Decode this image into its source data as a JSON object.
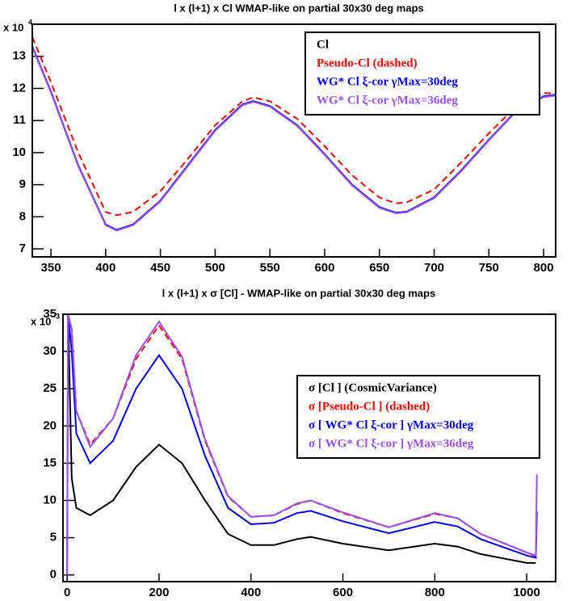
{
  "chart_data": [
    {
      "type": "line",
      "title": "l x (l+1) x Cl WMAP-like on partial 30x30 deg maps",
      "y_scale_label": {
        "text": "x 10",
        "exponent": "4"
      },
      "x": [
        333,
        350,
        375,
        400,
        410,
        425,
        450,
        475,
        500,
        525,
        535,
        550,
        575,
        600,
        625,
        650,
        665,
        675,
        700,
        725,
        750,
        775,
        800,
        811
      ],
      "series": [
        {
          "name": "Cl",
          "color": "#000000",
          "dash": false,
          "values": [
            13.3,
            11.9,
            9.6,
            7.75,
            7.58,
            7.75,
            8.5,
            9.6,
            10.7,
            11.5,
            11.6,
            11.45,
            10.85,
            9.95,
            9.0,
            8.3,
            8.12,
            8.15,
            8.6,
            9.45,
            10.4,
            11.3,
            11.75,
            11.8
          ]
        },
        {
          "name": "Pseudo-Cl  (dashed)",
          "color": "#ff0000",
          "dash": true,
          "values": [
            13.6,
            12.2,
            10.0,
            8.15,
            8.05,
            8.15,
            8.8,
            9.8,
            10.85,
            11.6,
            11.72,
            11.6,
            11.05,
            10.2,
            9.3,
            8.6,
            8.42,
            8.45,
            8.85,
            9.7,
            10.6,
            11.45,
            11.85,
            11.85
          ]
        },
        {
          "name": "WG* Cl ξ-cor  γMax=30deg",
          "color": "#0000ff",
          "dash": false,
          "values": [
            13.3,
            11.9,
            9.6,
            7.76,
            7.59,
            7.76,
            8.5,
            9.6,
            10.7,
            11.5,
            11.6,
            11.45,
            10.85,
            9.95,
            9.0,
            8.3,
            8.13,
            8.16,
            8.6,
            9.45,
            10.4,
            11.3,
            11.75,
            11.8
          ]
        },
        {
          "name": "WG* Cl ξ-cor  γMax=36deg",
          "color": "#9a4ef0",
          "dash": false,
          "values": [
            13.28,
            11.88,
            9.58,
            7.74,
            7.57,
            7.74,
            8.48,
            9.58,
            10.68,
            11.48,
            11.58,
            11.43,
            10.83,
            9.93,
            8.98,
            8.28,
            8.11,
            8.14,
            8.58,
            9.43,
            10.38,
            11.28,
            11.73,
            11.78
          ]
        }
      ],
      "xlim": [
        333,
        811
      ],
      "ylim": [
        6.75,
        14
      ],
      "xticks": [
        350,
        400,
        450,
        500,
        550,
        600,
        650,
        700,
        750,
        800
      ],
      "yticks": [
        7,
        8,
        9,
        10,
        11,
        12,
        13
      ],
      "legend": "upper right"
    },
    {
      "type": "line",
      "title": "l x (l+1) x σ [Cl]  - WMAP-like on partial 30x30 deg maps",
      "y_scale_label": {
        "text": "x 10",
        "exponent": "3"
      },
      "x": [
        0,
        2,
        10,
        20,
        50,
        100,
        150,
        200,
        250,
        300,
        350,
        400,
        450,
        500,
        530,
        600,
        700,
        800,
        850,
        900,
        1000,
        1020,
        1022
      ],
      "series": [
        {
          "name": "σ [Cl ] (CosmicVariance)",
          "color": "#000000",
          "dash": false,
          "values": [
            null,
            35,
            13,
            9,
            8,
            10,
            14.5,
            17.5,
            15,
            10,
            5.5,
            4,
            4,
            4.8,
            5.1,
            4.2,
            3.3,
            4.2,
            3.8,
            2.8,
            1.6,
            1.6,
            null
          ]
        },
        {
          "name": "σ [Pseudo-Cl ] (dashed)",
          "color": "#ff0000",
          "dash": true,
          "values": [
            null,
            35,
            33,
            22,
            17.5,
            21,
            29,
            33.5,
            29,
            18,
            10.5,
            7.8,
            8,
            9.5,
            10,
            8.3,
            6.4,
            8.2,
            7.6,
            5.5,
            3,
            2.5,
            null
          ]
        },
        {
          "name": "σ [ WG* Cl ξ-cor ] γMax=30deg",
          "color": "#0000ff",
          "dash": false,
          "values": [
            0,
            35,
            30,
            19,
            15,
            18,
            25,
            29.5,
            25,
            16,
            9,
            6.8,
            7,
            8.3,
            8.6,
            7.2,
            5.6,
            7.1,
            6.5,
            4.8,
            2.6,
            2.3,
            8.5
          ]
        },
        {
          "name": "σ [ WG* Cl ξ-cor ] γMax=36deg",
          "color": "#9a4ef0",
          "dash": false,
          "values": [
            0,
            35,
            33,
            22,
            17.2,
            21,
            29.5,
            34,
            29.3,
            18.2,
            10.6,
            7.8,
            8,
            9.6,
            10,
            8.4,
            6.4,
            8.3,
            7.6,
            5.5,
            3,
            2.6,
            13.5
          ]
        }
      ],
      "xlim": [
        -9,
        1063
      ],
      "ylim": [
        -0.9,
        35
      ],
      "xticks": [
        0,
        200,
        400,
        600,
        800,
        1000
      ],
      "yticks": [
        0,
        5,
        10,
        15,
        20,
        25,
        30,
        35
      ],
      "legend": "upper right"
    }
  ]
}
